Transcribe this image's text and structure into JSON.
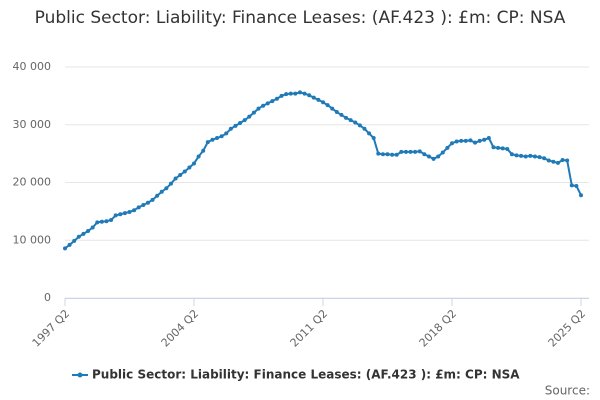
{
  "chart_data": {
    "type": "line",
    "title": "Public Sector: Liability: Finance Leases: (AF.423 ): £m: CP: NSA",
    "source": "Source:",
    "categories": [
      "1997 Q2",
      null,
      null,
      null,
      null,
      null,
      null,
      null,
      null,
      null,
      null,
      null,
      null,
      null,
      null,
      null,
      null,
      null,
      null,
      null,
      null,
      null,
      null,
      null,
      null,
      null,
      null,
      null,
      "2004 Q2",
      null,
      null,
      null,
      null,
      null,
      null,
      null,
      null,
      null,
      null,
      null,
      null,
      null,
      null,
      null,
      null,
      null,
      null,
      null,
      null,
      null,
      null,
      null,
      null,
      null,
      null,
      null,
      "2011 Q2",
      null,
      null,
      null,
      null,
      null,
      null,
      null,
      null,
      null,
      null,
      null,
      null,
      null,
      null,
      null,
      null,
      null,
      null,
      null,
      null,
      null,
      null,
      null,
      null,
      null,
      null,
      null,
      "2018 Q2",
      null,
      null,
      null,
      null,
      null,
      null,
      null,
      null,
      null,
      null,
      null,
      null,
      null,
      null,
      null,
      null,
      null,
      null,
      null,
      null,
      null,
      null,
      null,
      null,
      null,
      null,
      null,
      "2025 Q2"
    ],
    "series": [
      {
        "name": "Public Sector: Liability: Finance Leases: (AF.423 ): £m: CP: NSA",
        "color": "#1f7ab8",
        "values": [
          8600,
          9200,
          9900,
          10600,
          11100,
          11600,
          12200,
          13100,
          13200,
          13300,
          13500,
          14300,
          14500,
          14700,
          14900,
          15200,
          15700,
          16100,
          16500,
          17000,
          17700,
          18400,
          19000,
          19800,
          20700,
          21300,
          21900,
          22600,
          23300,
          24500,
          25500,
          27000,
          27400,
          27700,
          28000,
          28500,
          29300,
          29800,
          30300,
          30800,
          31400,
          32100,
          32800,
          33300,
          33700,
          34100,
          34500,
          35000,
          35300,
          35400,
          35400,
          35600,
          35400,
          35100,
          34700,
          34300,
          33900,
          33400,
          32800,
          32200,
          31700,
          31200,
          30800,
          30400,
          29900,
          29300,
          28500,
          27700,
          25000,
          24900,
          24900,
          24800,
          24800,
          25300,
          25300,
          25300,
          25300,
          25400,
          24900,
          24500,
          24100,
          24500,
          25200,
          26000,
          26800,
          27100,
          27200,
          27200,
          27300,
          26900,
          27200,
          27400,
          27700,
          26100,
          26000,
          25900,
          25800,
          24900,
          24700,
          24600,
          24500,
          24600,
          24500,
          24400,
          24200,
          23800,
          23600,
          23400,
          23900,
          23800,
          19500,
          19400,
          17800
        ]
      }
    ],
    "ylim": [
      0,
      40000
    ],
    "yticks": [
      0,
      {
        "value": 10000,
        "label": "10 000"
      },
      {
        "value": 20000,
        "label": "20 000"
      },
      {
        "value": 30000,
        "label": "30 000"
      },
      {
        "value": 40000,
        "label": "40 000"
      }
    ],
    "grid": true
  }
}
